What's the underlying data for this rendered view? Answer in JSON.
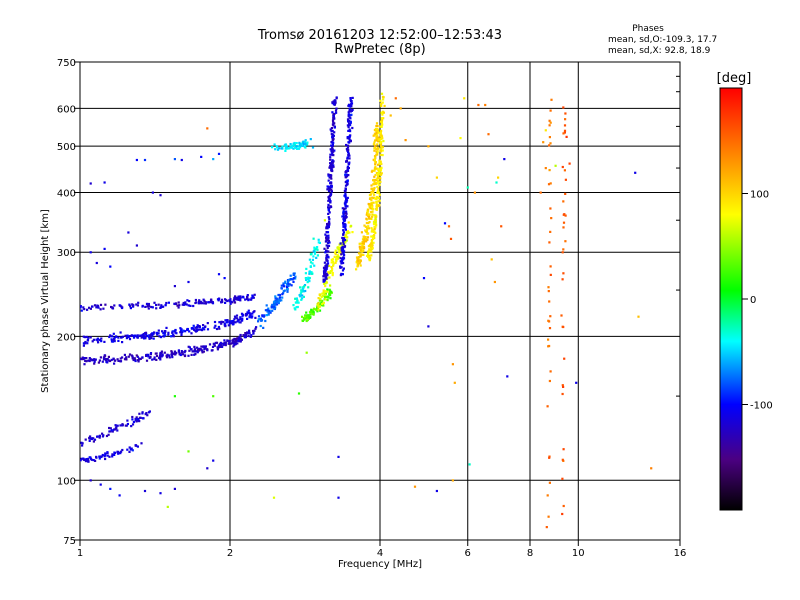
{
  "chart_data": {
    "type": "scatter",
    "title": "Tromsø 20161203 12:52:00–12:53:43",
    "subtitle": "RwPretec (8p)",
    "xlabel": "Frequency [MHz]",
    "ylabel": "Stationary phase Virtual Height [km]",
    "x_scale": "log",
    "y_scale": "log",
    "xlim": [
      1,
      16
    ],
    "ylim": [
      75,
      750
    ],
    "xticks": [
      1,
      2,
      4,
      6,
      8,
      10,
      16
    ],
    "yticks": [
      75,
      100,
      200,
      300,
      400,
      500,
      600,
      750
    ],
    "grid": true,
    "info": {
      "title": "Phases",
      "line1": "mean, sd,O:-109.3, 17.7",
      "line2": "mean, sd,X:  92.8, 18.9"
    },
    "colorbar": {
      "label": "[deg]",
      "range": [
        -200,
        200
      ],
      "ticks": [
        100,
        0,
        -100
      ],
      "colormap": "rainbow"
    },
    "seed": 20161203,
    "traces": [
      {
        "x": [
          1.0,
          1.3,
          1.6,
          1.95,
          2.25
        ],
        "y": [
          178,
          180,
          185,
          192,
          205
        ],
        "phase": -125,
        "w": 0.03,
        "pts": 280
      },
      {
        "x": [
          1.0,
          1.3,
          1.6,
          1.95,
          2.25
        ],
        "y": [
          196,
          200,
          205,
          212,
          225
        ],
        "phase": -110,
        "w": 0.03,
        "pts": 240
      },
      {
        "x": [
          1.0,
          1.35,
          1.7,
          2.0,
          2.25
        ],
        "y": [
          230,
          232,
          235,
          238,
          243
        ],
        "phase": -118,
        "w": 0.02,
        "pts": 170
      },
      {
        "x": [
          1.0,
          1.1,
          1.18,
          1.32
        ],
        "y": [
          110,
          112,
          114,
          118
        ],
        "phase": -112,
        "w": 0.02,
        "pts": 60
      },
      {
        "x": [
          1.0,
          1.1,
          1.2,
          1.3,
          1.38
        ],
        "y": [
          120,
          124,
          130,
          134,
          138
        ],
        "phase": -120,
        "w": 0.03,
        "pts": 70
      },
      {
        "x": [
          2.3,
          2.5,
          2.7
        ],
        "y": [
          215,
          240,
          270
        ],
        "phase": -80,
        "w": 0.04,
        "pts": 110
      },
      {
        "x": [
          2.7,
          2.85,
          3.0
        ],
        "y": [
          230,
          260,
          320
        ],
        "phase": -40,
        "w": 0.04,
        "pts": 80
      },
      {
        "x": [
          2.8,
          3.0,
          3.2
        ],
        "y": [
          215,
          230,
          250
        ],
        "phase": 30,
        "w": 0.03,
        "pts": 80
      },
      {
        "x": [
          3.0,
          3.15,
          3.3,
          3.5
        ],
        "y": [
          225,
          265,
          300,
          340
        ],
        "phase": 75,
        "w": 0.04,
        "pts": 110
      },
      {
        "x": [
          2.45,
          2.7,
          2.9
        ],
        "y": [
          495,
          500,
          510
        ],
        "phase": -45,
        "w": 0.03,
        "pts": 70
      },
      {
        "x": [
          3.1,
          3.15,
          3.2,
          3.25
        ],
        "y": [
          260,
          350,
          480,
          640
        ],
        "phase": -118,
        "w": 0.025,
        "pts": 240
      },
      {
        "x": [
          3.35,
          3.4,
          3.45,
          3.5
        ],
        "y": [
          270,
          360,
          490,
          630
        ],
        "phase": -112,
        "w": 0.025,
        "pts": 220
      },
      {
        "x": [
          3.6,
          3.75,
          3.9,
          3.95
        ],
        "y": [
          280,
          330,
          420,
          560
        ],
        "phase": 100,
        "w": 0.03,
        "pts": 230
      },
      {
        "x": [
          3.8,
          3.9,
          4.0,
          4.05
        ],
        "y": [
          290,
          340,
          450,
          640
        ],
        "phase": 88,
        "w": 0.025,
        "pts": 200
      },
      {
        "x": [
          8.7,
          8.75,
          8.8
        ],
        "y": [
          80,
          300,
          640
        ],
        "phase": 150,
        "w": 0.02,
        "pts": 35
      },
      {
        "x": [
          9.3,
          9.35,
          9.4
        ],
        "y": [
          80,
          300,
          640
        ],
        "phase": 160,
        "w": 0.02,
        "pts": 35
      }
    ],
    "scatter": [
      [
        1.05,
        418,
        -120
      ],
      [
        1.12,
        420,
        -110
      ],
      [
        1.3,
        468,
        -100
      ],
      [
        1.35,
        468,
        -90
      ],
      [
        1.4,
        400,
        -115
      ],
      [
        1.45,
        395,
        -120
      ],
      [
        1.55,
        470,
        -80
      ],
      [
        1.6,
        468,
        -110
      ],
      [
        1.75,
        475,
        -100
      ],
      [
        1.85,
        470,
        -60
      ],
      [
        1.9,
        482,
        -95
      ],
      [
        1.8,
        545,
        150
      ],
      [
        1.25,
        330,
        -115
      ],
      [
        1.3,
        310,
        -120
      ],
      [
        1.05,
        300,
        -110
      ],
      [
        1.12,
        305,
        -105
      ],
      [
        1.08,
        285,
        -115
      ],
      [
        1.15,
        280,
        -100
      ],
      [
        1.55,
        255,
        -120
      ],
      [
        1.65,
        260,
        -110
      ],
      [
        1.95,
        265,
        -100
      ],
      [
        1.9,
        270,
        -105
      ],
      [
        1.1,
        98,
        -110
      ],
      [
        1.05,
        100,
        -120
      ],
      [
        1.15,
        96,
        -95
      ],
      [
        1.2,
        93,
        -105
      ],
      [
        1.35,
        95,
        -115
      ],
      [
        1.45,
        94,
        -112
      ],
      [
        1.55,
        96,
        -118
      ],
      [
        1.5,
        88,
        60
      ],
      [
        1.8,
        106,
        -120
      ],
      [
        1.85,
        110,
        -110
      ],
      [
        1.65,
        115,
        40
      ],
      [
        1.55,
        150,
        15
      ],
      [
        1.85,
        150,
        30
      ],
      [
        2.45,
        92,
        70
      ],
      [
        2.75,
        152,
        20
      ],
      [
        2.85,
        185,
        50
      ],
      [
        3.1,
        350,
        70
      ],
      [
        3.3,
        112,
        -110
      ],
      [
        3.3,
        92,
        -110
      ],
      [
        4.3,
        630,
        150
      ],
      [
        4.2,
        580,
        110
      ],
      [
        4.4,
        600,
        120
      ],
      [
        4.5,
        515,
        130
      ],
      [
        5.0,
        500,
        120
      ],
      [
        5.2,
        430,
        100
      ],
      [
        4.9,
        265,
        -100
      ],
      [
        5.0,
        210,
        -115
      ],
      [
        5.4,
        345,
        -100
      ],
      [
        5.5,
        340,
        150
      ],
      [
        5.55,
        320,
        160
      ],
      [
        5.6,
        175,
        130
      ],
      [
        5.65,
        160,
        120
      ],
      [
        5.8,
        520,
        80
      ],
      [
        5.9,
        630,
        90
      ],
      [
        6.0,
        410,
        -25
      ],
      [
        6.05,
        108,
        -30
      ],
      [
        6.2,
        400,
        130
      ],
      [
        6.3,
        610,
        150
      ],
      [
        6.5,
        610,
        140
      ],
      [
        6.6,
        530,
        150
      ],
      [
        6.7,
        290,
        110
      ],
      [
        6.8,
        260,
        130
      ],
      [
        6.85,
        420,
        -30
      ],
      [
        6.9,
        430,
        100
      ],
      [
        7.0,
        340,
        160
      ],
      [
        7.2,
        165,
        -110
      ],
      [
        7.1,
        470,
        -110
      ],
      [
        8.4,
        400,
        150
      ],
      [
        8.6,
        450,
        140
      ],
      [
        8.5,
        510,
        130
      ],
      [
        8.6,
        540,
        90
      ],
      [
        8.8,
        560,
        130
      ],
      [
        9.0,
        455,
        60
      ],
      [
        9.3,
        300,
        160
      ],
      [
        9.6,
        460,
        170
      ],
      [
        9.9,
        160,
        -110
      ],
      [
        13.0,
        440,
        -110
      ],
      [
        13.2,
        220,
        110
      ],
      [
        14.0,
        106,
        140
      ],
      [
        4.7,
        97,
        130
      ],
      [
        5.6,
        100,
        120
      ],
      [
        5.2,
        95,
        -110
      ]
    ]
  }
}
